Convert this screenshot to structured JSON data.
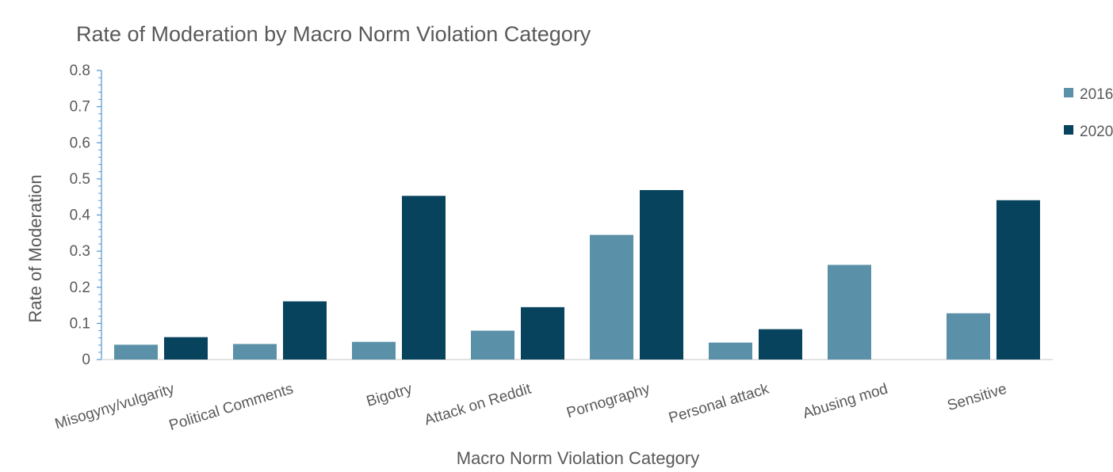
{
  "chart_data": {
    "type": "bar",
    "title": "Rate of Moderation by Macro Norm Violation Category",
    "xlabel": "Macro Norm Violation Category",
    "ylabel": "Rate of Moderation",
    "ylim": [
      0,
      0.8
    ],
    "yticks": [
      "0",
      "0.1",
      "0.2",
      "0.3",
      "0.4",
      "0.5",
      "0.6",
      "0.7",
      "0.8"
    ],
    "categories": [
      "Misogyny/vulgarity",
      "Political Comments",
      "Bigotry",
      "Attack on Reddit",
      "Pornography",
      "Personal attack",
      "Abusing mod",
      "Sensitive"
    ],
    "series": [
      {
        "name": "2016",
        "color": "#5b91a8",
        "values": [
          0.041,
          0.043,
          0.049,
          0.08,
          0.345,
          0.047,
          0.262,
          0.128
        ]
      },
      {
        "name": "2020",
        "color": "#08435e",
        "values": [
          0.062,
          0.161,
          0.453,
          0.145,
          0.469,
          0.084,
          0.0,
          0.441
        ]
      }
    ],
    "grid": false,
    "legend_position": "right"
  }
}
